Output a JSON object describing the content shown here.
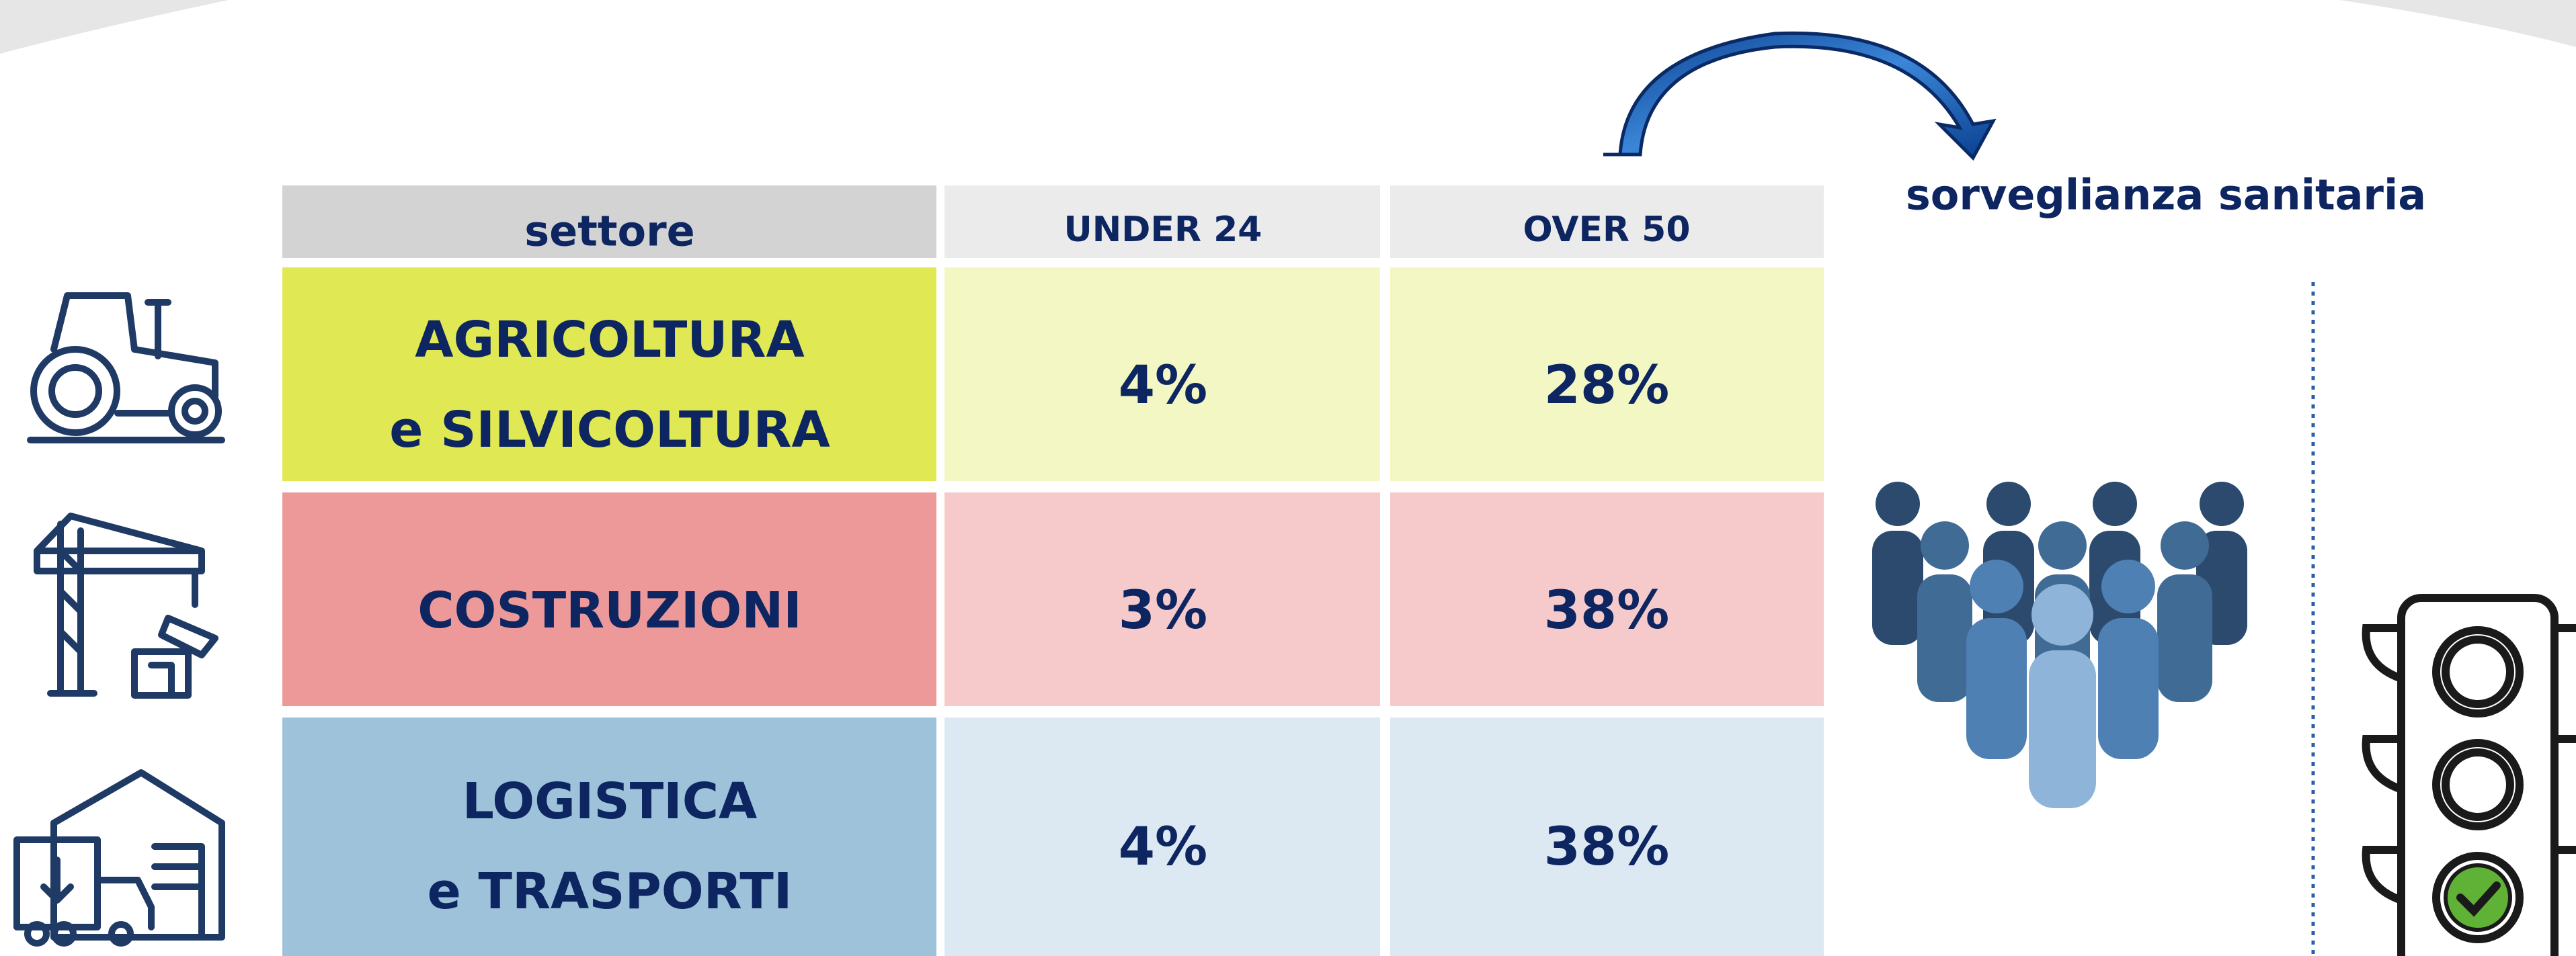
{
  "table": {
    "header": [
      "settore",
      "UNDER 24",
      "OVER 50"
    ],
    "rows": [
      [
        [
          "AGRICOLTURA",
          "e SILVICOLTURA"
        ],
        "4%",
        "28%"
      ],
      [
        [
          "COSTRUZIONI"
        ],
        "3%",
        "38%"
      ],
      [
        [
          "LOGISTICA",
          "e TRASPORTI"
        ],
        "4%",
        "38%"
      ]
    ]
  },
  "side": {
    "label": "sorveglianza sanitaria"
  }
}
